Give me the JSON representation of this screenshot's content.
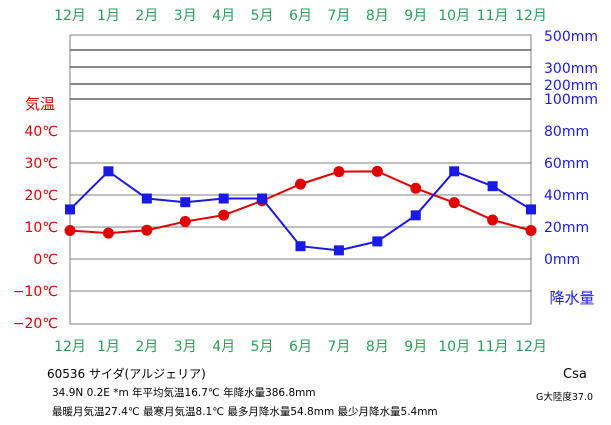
{
  "chart_data": {
    "type": "line",
    "categories": [
      "12月",
      "1月",
      "2月",
      "3月",
      "4月",
      "5月",
      "6月",
      "7月",
      "8月",
      "9月",
      "10月",
      "11月",
      "12月"
    ],
    "series": [
      {
        "name": "",
        "axis": "left",
        "unit": "℃",
        "color": "#e00000",
        "marker": "circle",
        "values": [
          8.9,
          8.1,
          9.0,
          11.7,
          13.7,
          18.2,
          23.4,
          27.3,
          27.4,
          22.1,
          17.6,
          12.2,
          8.9
        ]
      },
      {
        "name": "",
        "axis": "right",
        "unit": "mm",
        "color": "#1a1ae6",
        "marker": "square",
        "values": [
          31.0,
          54.8,
          37.8,
          35.5,
          37.8,
          37.8,
          8.0,
          5.4,
          11.0,
          27.3,
          54.8,
          45.5,
          31.0
        ]
      }
    ],
    "left_axis": {
      "label": "気温",
      "ticks": [
        "40℃",
        "30℃",
        "20℃",
        "10℃",
        "0℃",
        "−10℃",
        "−20℃"
      ],
      "tick_values": [
        40,
        30,
        20,
        10,
        0,
        -10,
        -20
      ],
      "range": [
        -20,
        40
      ]
    },
    "right_axis": {
      "label": "降水量",
      "ticks": [
        "500mm",
        "300mm",
        "200mm",
        "100mm",
        "80mm",
        "60mm",
        "40mm",
        "20mm",
        "0mm"
      ],
      "tick_values": [
        500,
        300,
        200,
        100,
        80,
        60,
        40,
        20,
        0
      ],
      "linear_range": [
        0,
        80
      ],
      "compressed_above": [
        100,
        200,
        300,
        500
      ]
    },
    "grid": true
  },
  "footer": {
    "line1": "60536  サイダ(アルジェリア)",
    "line2": "34.9N  0.2E  *m  年平均気温16.7℃ 年降水量386.8mm",
    "line3": "最暖月気温27.4℃ 最寒月気温8.1℃ 最多月降水量54.8mm 最少月降水量5.4mm",
    "koppen": "Csa",
    "continent": "G大陸度37.0"
  },
  "colors": {
    "temp": "#e00000",
    "precip": "#1a1ae6",
    "month": "#2a9d55",
    "grid": "#808080"
  }
}
